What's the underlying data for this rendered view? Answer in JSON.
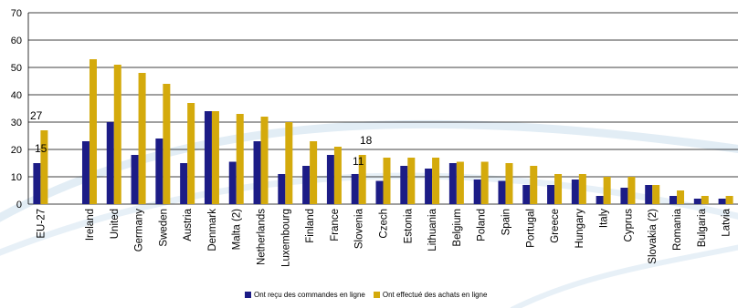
{
  "chart_data": {
    "type": "bar",
    "title": "",
    "xlabel": "",
    "ylabel": "",
    "ylim": [
      0,
      70
    ],
    "yticks": [
      0,
      10,
      20,
      30,
      40,
      50,
      60,
      70
    ],
    "grid": true,
    "legend_position": "bottom",
    "categories": [
      "EU-27",
      "",
      "Ireland",
      "United",
      "Germany",
      "Sweden",
      "Austria",
      "Denmark",
      "Malta (2)",
      "Netherlands",
      "Luxembourg",
      "Finland",
      "France",
      "Slovenia",
      "Czech",
      "Estonia",
      "Lithuania",
      "Belgium",
      "Poland",
      "Spain",
      "Portugal",
      "Greece",
      "Hungary",
      "Italy",
      "Cyprus",
      "Slovakia (2)",
      "Romania",
      "Bulgaria",
      "Latvia"
    ],
    "series": [
      {
        "name": "Ont reçu des commandes en ligne",
        "color": "#1c1c86",
        "values": [
          15,
          null,
          23,
          30,
          18,
          24,
          15,
          34,
          15.5,
          23,
          11,
          14,
          18,
          11,
          8.5,
          14,
          13,
          15,
          9,
          8.5,
          7,
          7,
          9,
          3,
          6,
          7,
          3,
          2,
          2
        ]
      },
      {
        "name": "Ont effectué des achats en ligne",
        "color": "#d4aa0c",
        "values": [
          27,
          null,
          53,
          51,
          48,
          44,
          37,
          34,
          33,
          32,
          30,
          23,
          21,
          18,
          17,
          17,
          17,
          15.5,
          15.5,
          15,
          14,
          11,
          11,
          10,
          10,
          7,
          5,
          3,
          3
        ]
      }
    ],
    "annotations": [
      "27",
      "15",
      "18",
      "11"
    ]
  }
}
